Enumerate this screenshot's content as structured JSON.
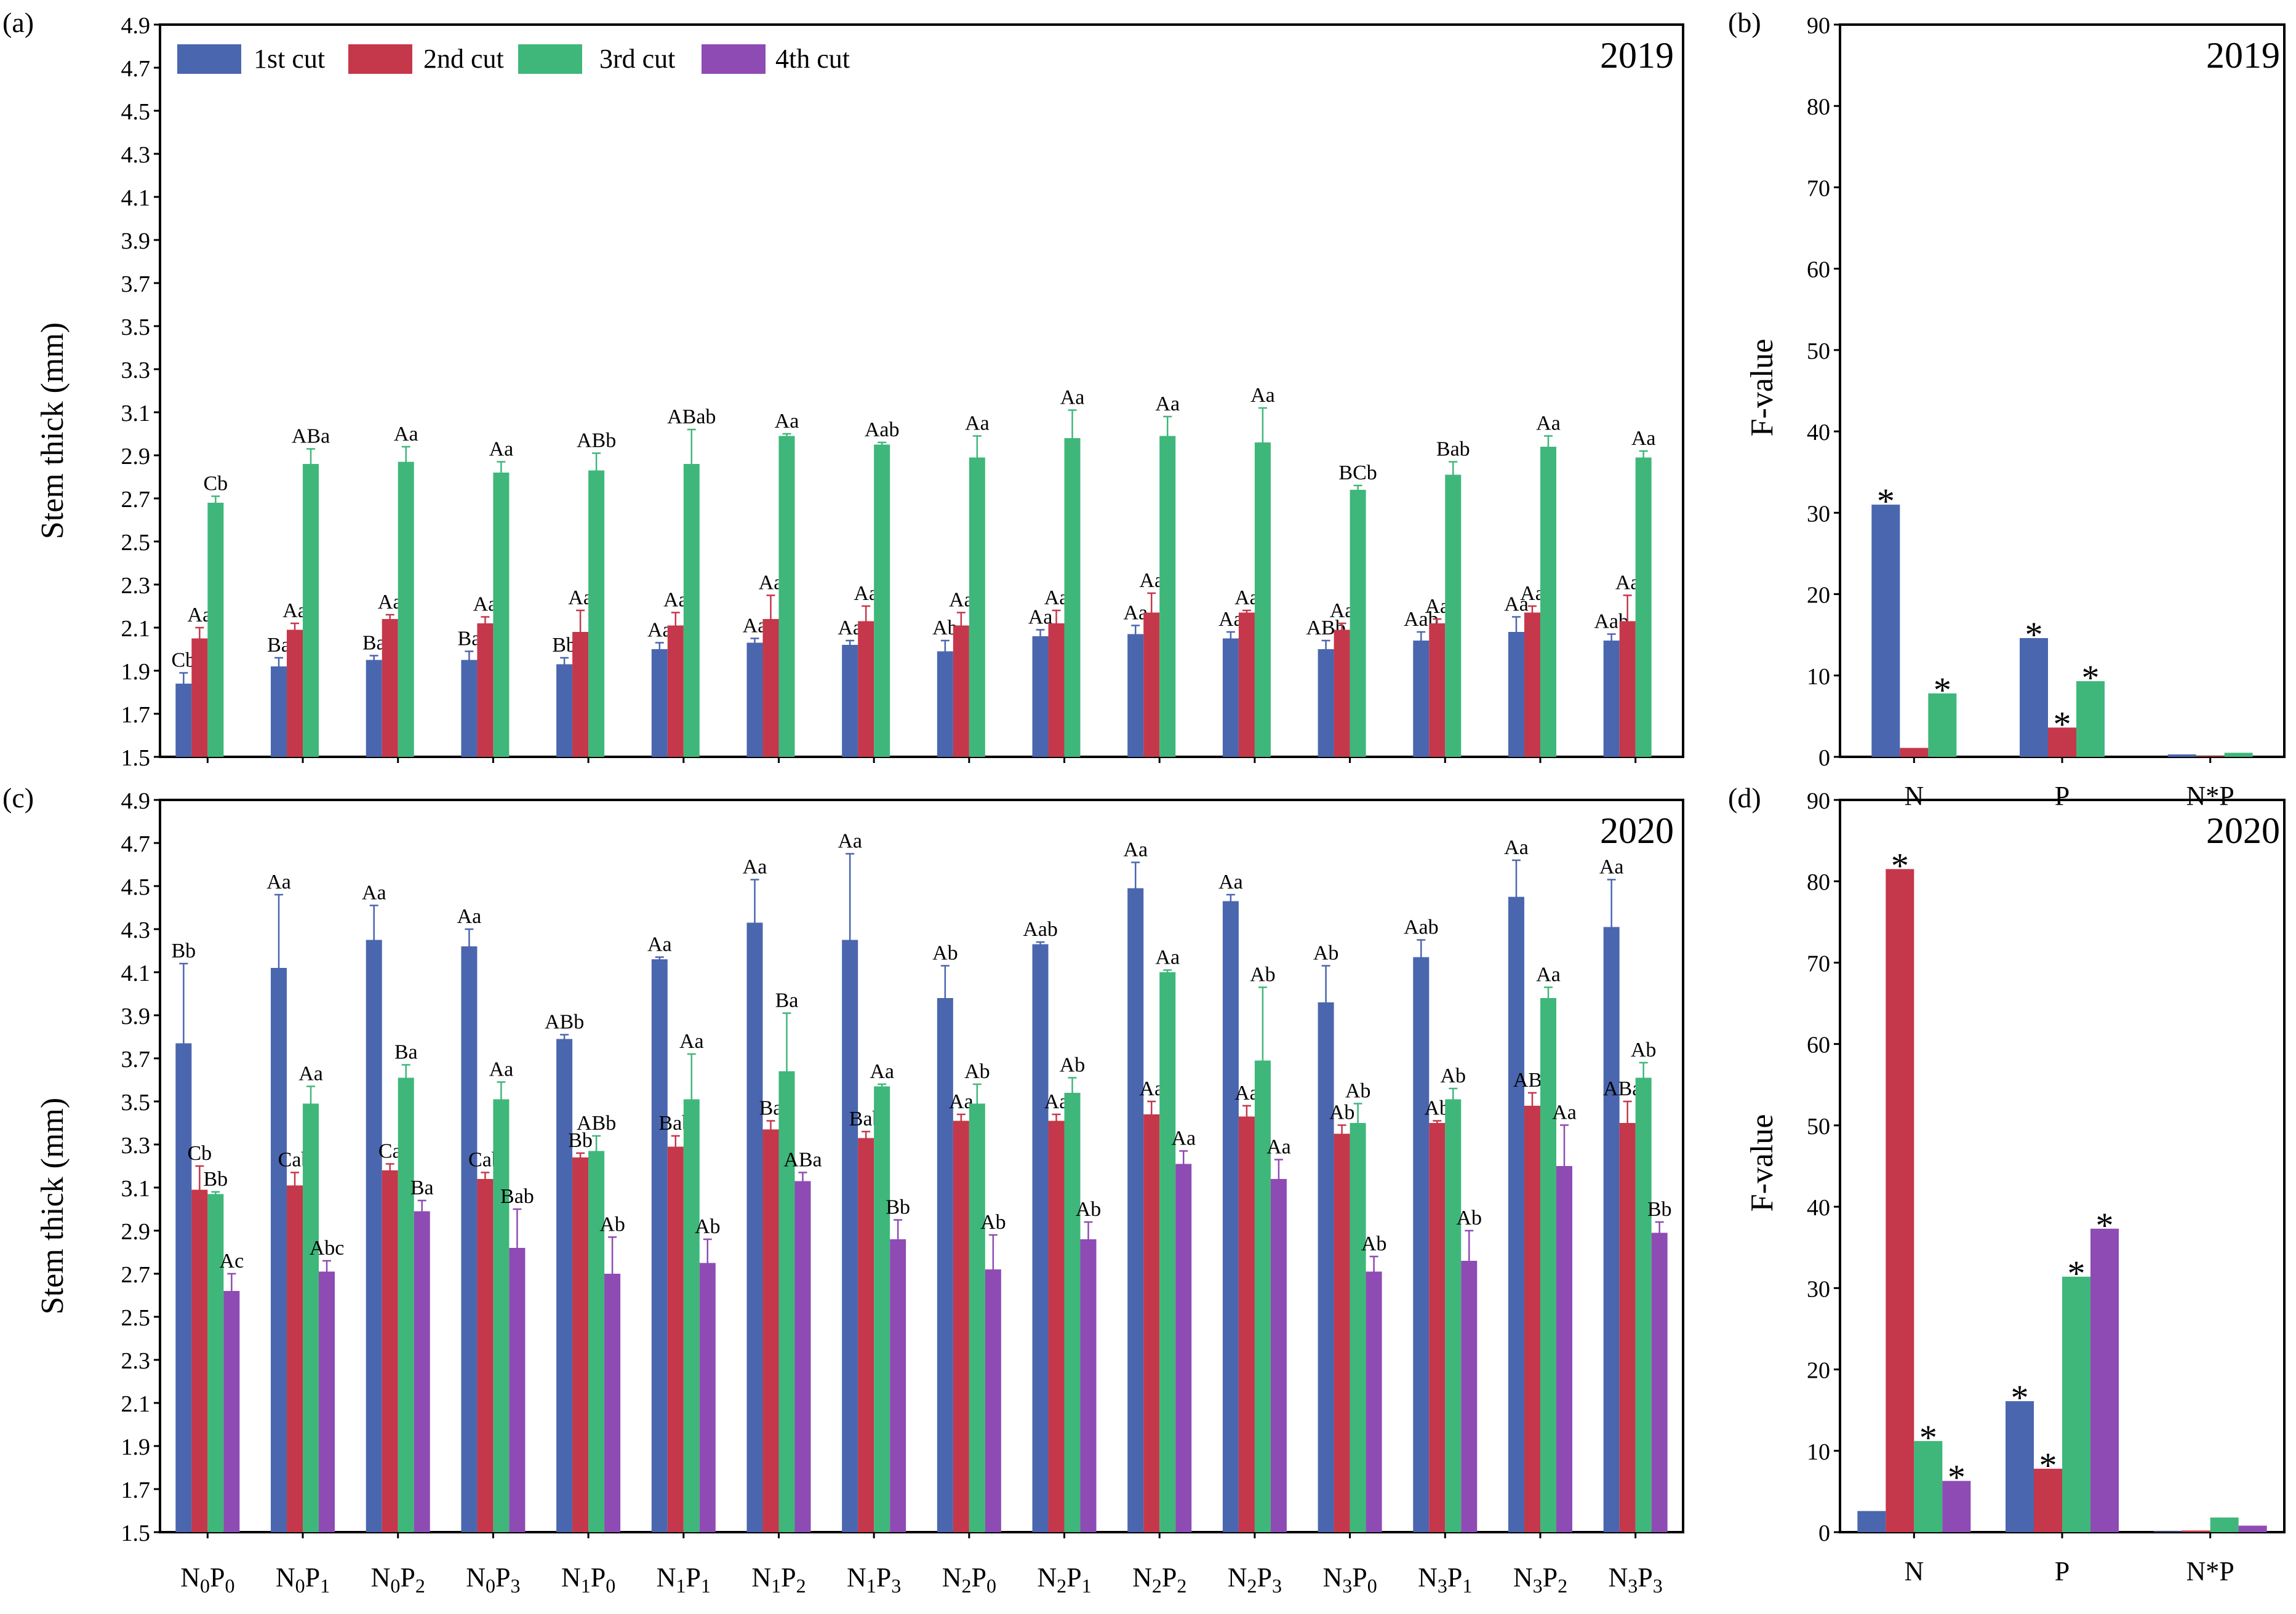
{
  "colors": {
    "cut1": "#4a66ae",
    "cut2": "#c5374a",
    "cut3": "#3fb77a",
    "cut4": "#8e4bb4",
    "axis": "#000000"
  },
  "legend": [
    "1st cut",
    "2nd cut",
    "3rd cut",
    "4th cut"
  ],
  "ylabel_stem": "Stem thick (mm)",
  "ylabel_f": "F-value",
  "treatments": [
    {
      "n": "0",
      "p": "0"
    },
    {
      "n": "0",
      "p": "1"
    },
    {
      "n": "0",
      "p": "2"
    },
    {
      "n": "0",
      "p": "3"
    },
    {
      "n": "1",
      "p": "0"
    },
    {
      "n": "1",
      "p": "1"
    },
    {
      "n": "1",
      "p": "2"
    },
    {
      "n": "1",
      "p": "3"
    },
    {
      "n": "2",
      "p": "0"
    },
    {
      "n": "2",
      "p": "1"
    },
    {
      "n": "2",
      "p": "2"
    },
    {
      "n": "2",
      "p": "3"
    },
    {
      "n": "3",
      "p": "0"
    },
    {
      "n": "3",
      "p": "1"
    },
    {
      "n": "3",
      "p": "2"
    },
    {
      "n": "3",
      "p": "3"
    }
  ],
  "chart_data": [
    {
      "panel": "(a)",
      "year": "2019",
      "type": "bar",
      "ylabel": "Stem thick (mm)",
      "ylim": [
        1.5,
        4.9
      ],
      "yticks": [
        "1.5",
        "1.7",
        "1.9",
        "2.1",
        "2.3",
        "2.5",
        "2.7",
        "2.9",
        "3.1",
        "3.3",
        "3.5",
        "3.7",
        "3.9",
        "4.1",
        "4.3",
        "4.5",
        "4.7",
        "4.9"
      ],
      "legend_position": "top-left",
      "series": [
        {
          "name": "1st cut",
          "values": [
            1.84,
            1.92,
            1.95,
            1.95,
            1.93,
            2.0,
            2.03,
            2.02,
            1.99,
            2.06,
            2.07,
            2.05,
            2.0,
            2.04,
            2.08,
            2.04
          ],
          "errors": [
            0.05,
            0.04,
            0.02,
            0.04,
            0.03,
            0.03,
            0.02,
            0.02,
            0.05,
            0.03,
            0.04,
            0.03,
            0.04,
            0.04,
            0.07,
            0.03
          ],
          "labels": [
            "Cb",
            "Ba",
            "Ba",
            "Ba",
            "Bb",
            "Aa",
            "Aa",
            "Aa",
            "Ab",
            "Aa",
            "Aa",
            "Aa",
            "ABb",
            "Aab",
            "Aa",
            "Aab"
          ]
        },
        {
          "name": "2nd cut",
          "values": [
            2.05,
            2.09,
            2.14,
            2.12,
            2.08,
            2.11,
            2.14,
            2.13,
            2.11,
            2.12,
            2.17,
            2.17,
            2.09,
            2.12,
            2.17,
            2.13
          ],
          "errors": [
            0.05,
            0.03,
            0.02,
            0.03,
            0.1,
            0.06,
            0.11,
            0.07,
            0.06,
            0.06,
            0.09,
            0.01,
            0.03,
            0.02,
            0.03,
            0.12
          ],
          "labels": [
            "Aa",
            "Aa",
            "Aa",
            "Aa",
            "Aa",
            "Aa",
            "Aa",
            "Aa",
            "Aa",
            "Aa",
            "Aa",
            "Aa",
            "Aa",
            "Aa",
            "Aa",
            "Aa"
          ]
        },
        {
          "name": "3rd cut",
          "values": [
            2.68,
            2.86,
            2.87,
            2.82,
            2.83,
            2.86,
            2.99,
            2.95,
            2.89,
            2.98,
            2.99,
            2.96,
            2.74,
            2.81,
            2.94,
            2.89
          ],
          "errors": [
            0.03,
            0.07,
            0.07,
            0.05,
            0.08,
            0.16,
            0.01,
            0.01,
            0.1,
            0.13,
            0.09,
            0.16,
            0.02,
            0.06,
            0.05,
            0.03
          ],
          "labels": [
            "Cb",
            "ABa",
            "Aa",
            "Aa",
            "ABb",
            "ABab",
            "Aa",
            "Aab",
            "Aa",
            "Aa",
            "Aa",
            "Aa",
            "BCb",
            "Bab",
            "Aa",
            "Aa"
          ]
        }
      ]
    },
    {
      "panel": "(b)",
      "year": "2019",
      "type": "bar",
      "ylabel": "F-value",
      "ylim": [
        0,
        90
      ],
      "yticks": [
        "0",
        "10",
        "20",
        "30",
        "40",
        "50",
        "60",
        "70",
        "80",
        "90"
      ],
      "categories": [
        "N",
        "P",
        "N*P"
      ],
      "series": [
        {
          "name": "1st cut",
          "values": [
            31,
            14.6,
            0.3
          ],
          "marks": [
            "*",
            "*",
            ""
          ]
        },
        {
          "name": "2nd cut",
          "values": [
            1.1,
            3.6,
            0.1
          ],
          "marks": [
            "",
            "*",
            ""
          ]
        },
        {
          "name": "3rd cut",
          "values": [
            7.8,
            9.3,
            0.5
          ],
          "marks": [
            "*",
            "*",
            ""
          ]
        }
      ]
    },
    {
      "panel": "(c)",
      "year": "2020",
      "type": "bar",
      "ylabel": "Stem thick (mm)",
      "ylim": [
        1.5,
        4.9
      ],
      "yticks": [
        "1.5",
        "1.7",
        "1.9",
        "2.1",
        "2.3",
        "2.5",
        "2.7",
        "2.9",
        "3.1",
        "3.3",
        "3.5",
        "3.7",
        "3.9",
        "4.1",
        "4.3",
        "4.5",
        "4.7",
        "4.9"
      ],
      "series": [
        {
          "name": "1st cut",
          "values": [
            3.77,
            4.12,
            4.25,
            4.22,
            3.79,
            4.16,
            4.33,
            4.25,
            3.98,
            4.23,
            4.49,
            4.43,
            3.96,
            4.17,
            4.45,
            4.31
          ],
          "errors": [
            0.37,
            0.34,
            0.16,
            0.08,
            0.02,
            0.01,
            0.2,
            0.4,
            0.15,
            0.01,
            0.12,
            0.03,
            0.17,
            0.08,
            0.17,
            0.22
          ],
          "labels": [
            "Bb",
            "Aa",
            "Aa",
            "Aa",
            "ABb",
            "Aa",
            "Aa",
            "Aa",
            "Ab",
            "Aab",
            "Aa",
            "Aa",
            "Ab",
            "Aab",
            "Aa",
            "Aa"
          ]
        },
        {
          "name": "2nd cut",
          "values": [
            3.09,
            3.11,
            3.18,
            3.14,
            3.24,
            3.29,
            3.37,
            3.33,
            3.41,
            3.41,
            3.44,
            3.43,
            3.35,
            3.4,
            3.48,
            3.4
          ],
          "errors": [
            0.11,
            0.06,
            0.03,
            0.03,
            0.02,
            0.05,
            0.04,
            0.03,
            0.03,
            0.03,
            0.06,
            0.05,
            0.04,
            0.01,
            0.06,
            0.1
          ],
          "labels": [
            "Cb",
            "Cab",
            "Ca",
            "Cab",
            "Bb",
            "Bab",
            "Ba",
            "Bab",
            "Aa",
            "Aa",
            "Aa",
            "Aa",
            "Ab",
            "Ab",
            "ABa",
            "ABab"
          ]
        },
        {
          "name": "3rd cut",
          "values": [
            3.07,
            3.49,
            3.61,
            3.51,
            3.27,
            3.51,
            3.64,
            3.57,
            3.49,
            3.54,
            4.1,
            3.69,
            3.4,
            3.51,
            3.98,
            3.61
          ],
          "errors": [
            0.01,
            0.08,
            0.06,
            0.08,
            0.07,
            0.21,
            0.27,
            0.01,
            0.09,
            0.07,
            0.01,
            0.34,
            0.09,
            0.05,
            0.05,
            0.07
          ],
          "labels": [
            "Bb",
            "Aa",
            "Ba",
            "Aa",
            "ABb",
            "Aa",
            "Ba",
            "Aa",
            "Ab",
            "Ab",
            "Aa",
            "Ab",
            "Ab",
            "Ab",
            "Aa",
            "Ab"
          ]
        },
        {
          "name": "4th cut",
          "values": [
            2.62,
            2.71,
            2.99,
            2.82,
            2.7,
            2.75,
            3.13,
            2.86,
            2.72,
            2.86,
            3.21,
            3.14,
            2.71,
            2.76,
            3.2,
            2.89
          ],
          "errors": [
            0.08,
            0.05,
            0.05,
            0.18,
            0.17,
            0.11,
            0.04,
            0.09,
            0.16,
            0.08,
            0.06,
            0.09,
            0.07,
            0.14,
            0.19,
            0.05
          ],
          "labels": [
            "Ac",
            "Abc",
            "Ba",
            "Bab",
            "Ab",
            "Ab",
            "ABa",
            "Bb",
            "Ab",
            "Ab",
            "Aa",
            "Aa",
            "Ab",
            "Ab",
            "Aa",
            "Bb"
          ]
        }
      ]
    },
    {
      "panel": "(d)",
      "year": "2020",
      "type": "bar",
      "ylabel": "F-value",
      "ylim": [
        0,
        90
      ],
      "yticks": [
        "0",
        "10",
        "20",
        "30",
        "40",
        "50",
        "60",
        "70",
        "80",
        "90"
      ],
      "categories": [
        "N",
        "P",
        "N*P"
      ],
      "series": [
        {
          "name": "1st cut",
          "values": [
            2.6,
            16.1,
            0.1
          ],
          "marks": [
            "",
            "*",
            ""
          ]
        },
        {
          "name": "2nd cut",
          "values": [
            81.5,
            7.8,
            0.2
          ],
          "marks": [
            "*",
            "*",
            ""
          ]
        },
        {
          "name": "3rd cut",
          "values": [
            11.2,
            31.4,
            1.8
          ],
          "marks": [
            "*",
            "*",
            ""
          ]
        },
        {
          "name": "4th cut",
          "values": [
            6.3,
            37.3,
            0.8
          ],
          "marks": [
            "*",
            "*",
            ""
          ]
        }
      ]
    }
  ]
}
